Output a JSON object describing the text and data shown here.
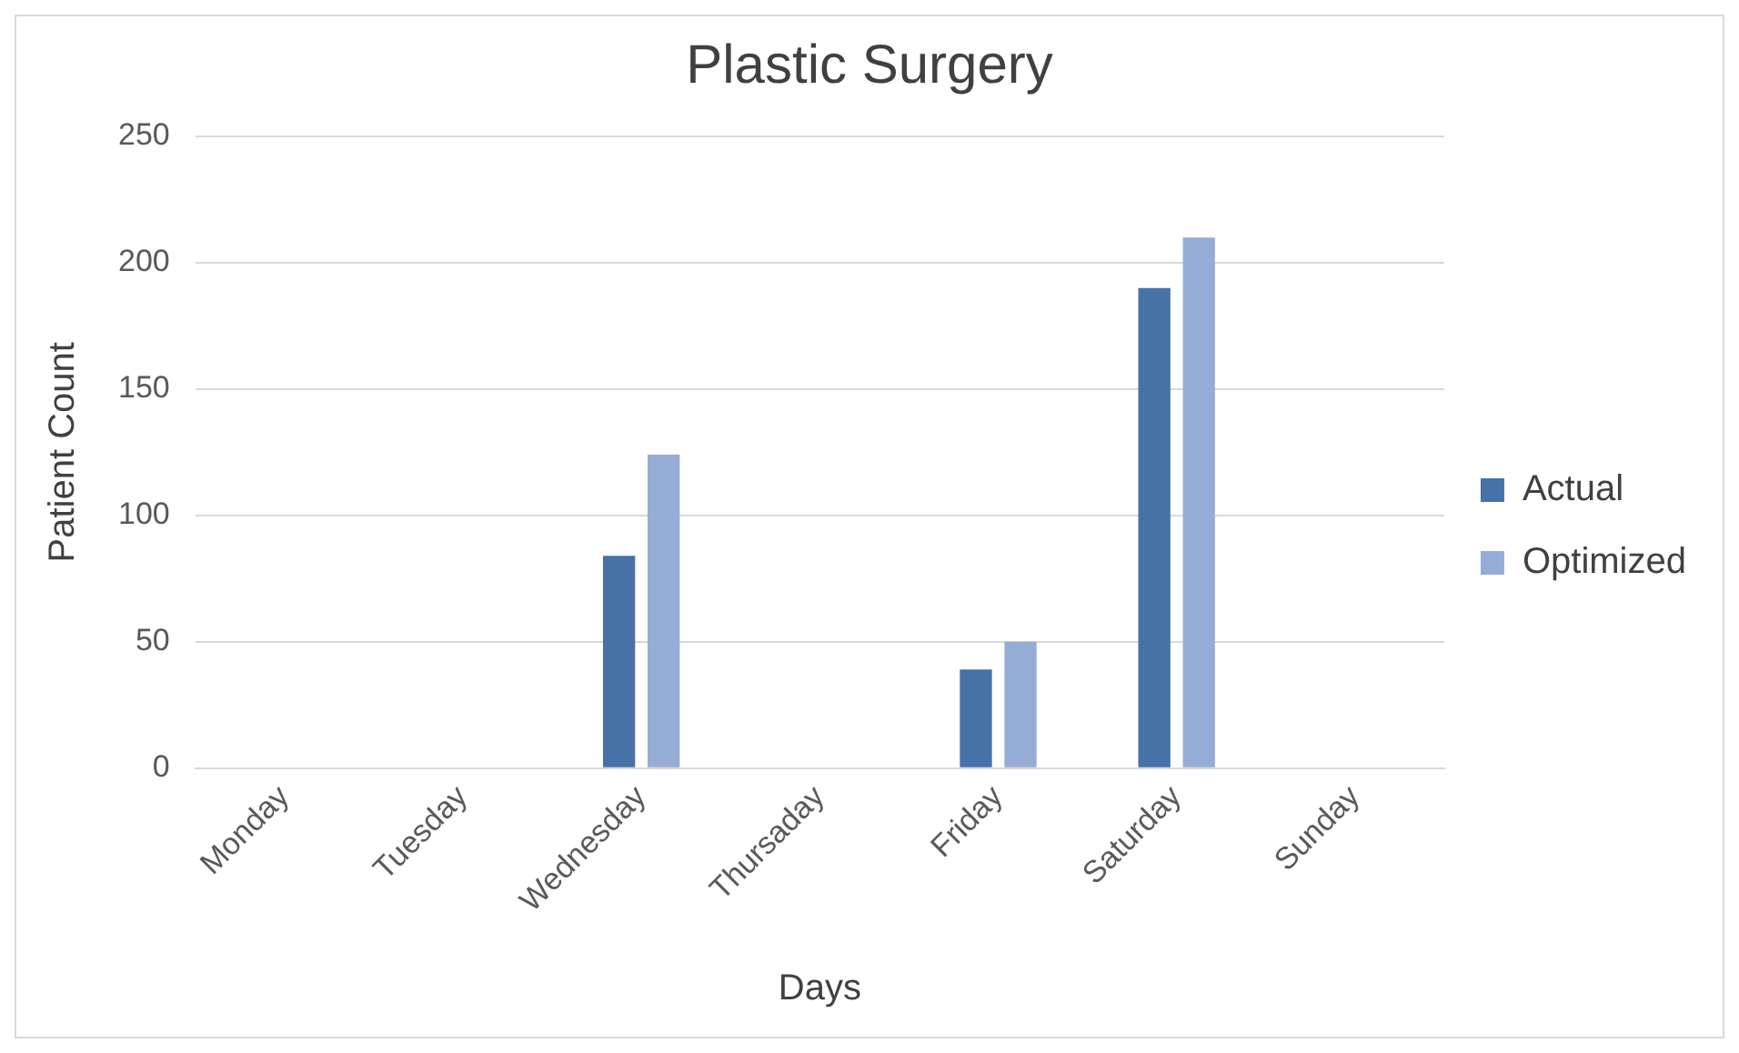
{
  "chart_data": {
    "type": "bar",
    "title": "Plastic Surgery",
    "xlabel": "Days",
    "ylabel": "Patient Count",
    "categories": [
      "Monday",
      "Tuesday",
      "Wednesday",
      "Thursaday",
      "Friday",
      "Saturday",
      "Sunday"
    ],
    "series": [
      {
        "name": "Actual",
        "color": "#4672a8",
        "values": [
          0,
          0,
          84,
          0,
          39,
          190,
          0
        ]
      },
      {
        "name": "Optimized",
        "color": "#95acd4",
        "values": [
          0,
          0,
          124,
          0,
          50,
          210,
          0
        ]
      }
    ],
    "ylim": [
      0,
      250
    ],
    "yticks": [
      0,
      50,
      100,
      150,
      200,
      250
    ],
    "grid": "y",
    "legend": "right"
  }
}
